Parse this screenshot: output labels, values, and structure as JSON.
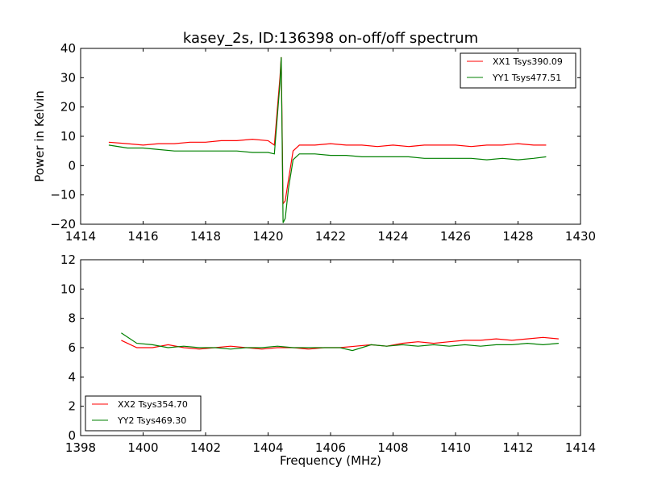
{
  "chart_data": [
    {
      "type": "line",
      "title": "kasey_2s, ID:136398 on-off/off spectrum",
      "xlabel": "",
      "ylabel": "Power in Kelvin",
      "xlim": [
        1414,
        1430
      ],
      "ylim": [
        -20,
        40
      ],
      "xticks": [
        "1414",
        "1416",
        "1418",
        "1420",
        "1422",
        "1424",
        "1426",
        "1428",
        "1430"
      ],
      "yticks": [
        "40",
        "30",
        "20",
        "10",
        "0",
        "−10",
        "−20"
      ],
      "legend_position": "top-right",
      "series": [
        {
          "name": "XX1 Tsys390.09",
          "color": "#ff0000",
          "x": [
            1414.9,
            1415.5,
            1416.0,
            1416.5,
            1417.0,
            1417.5,
            1418.0,
            1418.5,
            1419.0,
            1419.5,
            1420.0,
            1420.2,
            1420.38,
            1420.42,
            1420.48,
            1420.55,
            1420.65,
            1420.8,
            1421.0,
            1421.5,
            1422.0,
            1422.5,
            1423.0,
            1423.5,
            1424.0,
            1424.5,
            1425.0,
            1425.5,
            1426.0,
            1426.5,
            1427.0,
            1427.5,
            1428.0,
            1428.5,
            1428.9
          ],
          "y": [
            8,
            7.5,
            7,
            7.5,
            7.5,
            8,
            8,
            8.5,
            8.5,
            9,
            8.5,
            7,
            30,
            37,
            -13,
            -12,
            -5,
            5,
            7,
            7,
            7.5,
            7,
            7,
            6.5,
            7,
            6.5,
            7,
            7,
            7,
            6.5,
            7,
            7,
            7.5,
            7,
            7
          ]
        },
        {
          "name": "YY1 Tsys477.51",
          "color": "#008000",
          "x": [
            1414.9,
            1415.5,
            1416.0,
            1416.5,
            1417.0,
            1417.5,
            1418.0,
            1418.5,
            1419.0,
            1419.5,
            1420.0,
            1420.2,
            1420.38,
            1420.42,
            1420.48,
            1420.55,
            1420.65,
            1420.8,
            1421.0,
            1421.5,
            1422.0,
            1422.5,
            1423.0,
            1423.5,
            1424.0,
            1424.5,
            1425.0,
            1425.5,
            1426.0,
            1426.5,
            1427.0,
            1427.5,
            1428.0,
            1428.5,
            1428.9
          ],
          "y": [
            7,
            6,
            6,
            5.5,
            5,
            5,
            5,
            5,
            5,
            4.5,
            4.5,
            4,
            28,
            37,
            -19.5,
            -18,
            -8,
            2,
            4,
            4,
            3.5,
            3.5,
            3,
            3,
            3,
            3,
            2.5,
            2.5,
            2.5,
            2.5,
            2,
            2.5,
            2,
            2.5,
            3
          ]
        }
      ]
    },
    {
      "type": "line",
      "title": "",
      "xlabel": "Frequency (MHz)",
      "ylabel": "",
      "xlim": [
        1398,
        1414
      ],
      "ylim": [
        0,
        12
      ],
      "xticks": [
        "1398",
        "1400",
        "1402",
        "1404",
        "1406",
        "1408",
        "1410",
        "1412",
        "1414"
      ],
      "yticks": [
        "12",
        "10",
        "8",
        "6",
        "4",
        "2",
        "0"
      ],
      "legend_position": "bottom-left",
      "series": [
        {
          "name": "XX2 Tsys354.70",
          "color": "#ff0000",
          "x": [
            1399.3,
            1399.8,
            1400.3,
            1400.8,
            1401.3,
            1401.8,
            1402.3,
            1402.8,
            1403.3,
            1403.8,
            1404.3,
            1404.8,
            1405.3,
            1405.8,
            1406.3,
            1406.8,
            1407.3,
            1407.8,
            1408.3,
            1408.8,
            1409.3,
            1409.8,
            1410.3,
            1410.8,
            1411.3,
            1411.8,
            1412.3,
            1412.8,
            1413.3
          ],
          "y": [
            6.5,
            6,
            6,
            6.2,
            6,
            5.9,
            6,
            6.1,
            6,
            5.9,
            6,
            6,
            5.9,
            6,
            6,
            6.1,
            6.2,
            6.1,
            6.3,
            6.4,
            6.3,
            6.4,
            6.5,
            6.5,
            6.6,
            6.5,
            6.6,
            6.7,
            6.6
          ]
        },
        {
          "name": "YY2 Tsys469.30",
          "color": "#008000",
          "x": [
            1399.3,
            1399.8,
            1400.3,
            1400.8,
            1401.3,
            1401.8,
            1402.3,
            1402.8,
            1403.3,
            1403.8,
            1404.3,
            1404.8,
            1405.3,
            1405.8,
            1406.3,
            1406.7,
            1407.3,
            1407.8,
            1408.3,
            1408.8,
            1409.3,
            1409.8,
            1410.3,
            1410.8,
            1411.3,
            1411.8,
            1412.3,
            1412.8,
            1413.3
          ],
          "y": [
            7,
            6.3,
            6.2,
            6,
            6.1,
            6,
            6,
            5.9,
            6,
            6,
            6.1,
            6,
            6,
            6,
            6,
            5.8,
            6.2,
            6.1,
            6.2,
            6.1,
            6.2,
            6.1,
            6.2,
            6.1,
            6.2,
            6.2,
            6.3,
            6.2,
            6.3
          ]
        }
      ]
    }
  ]
}
